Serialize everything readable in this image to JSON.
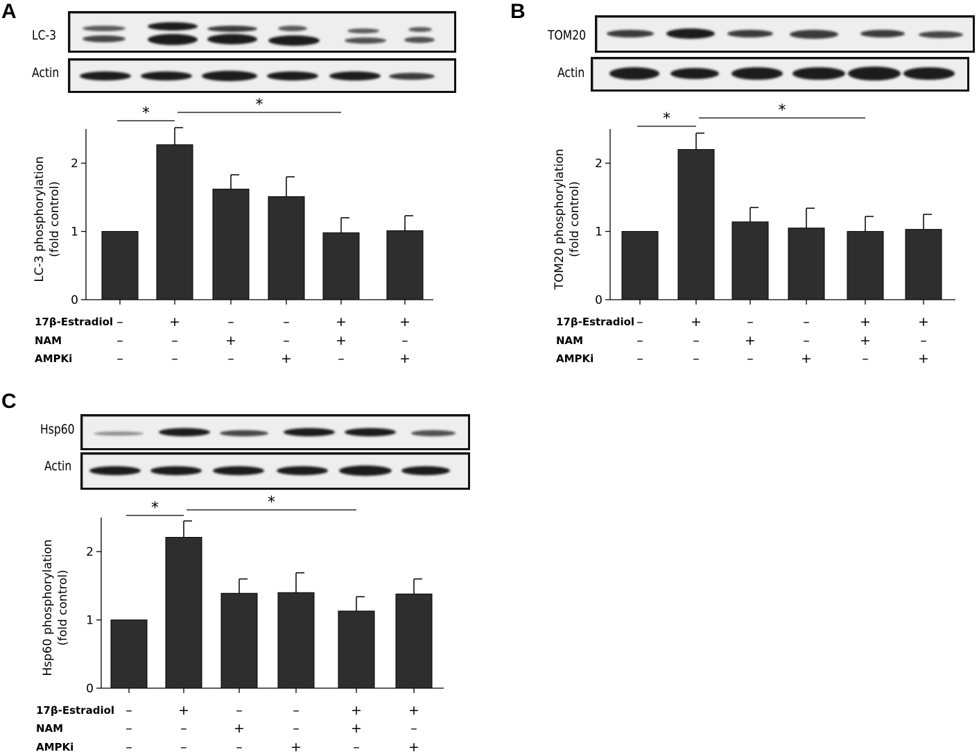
{
  "panels": [
    {
      "letter": "A",
      "blot_labels": [
        "LC-3",
        "Actin"
      ],
      "ylabel_lines": [
        "LC-3 phosphorylation",
        "(fold control)"
      ]
    },
    {
      "letter": "B",
      "blot_labels": [
        "TOM20",
        "Actin"
      ],
      "ylabel_lines": [
        "TOM20 phosphorylation",
        "(fold control)"
      ]
    },
    {
      "letter": "C",
      "blot_labels": [
        "Hsp60",
        "Actin"
      ],
      "ylabel_lines": [
        "Hsp60 phosphorylation",
        "(fold control)"
      ]
    }
  ],
  "chart_data": [
    {
      "type": "bar",
      "title": "",
      "xlabel": "",
      "ylabel": "LC-3 phosphorylation (fold control)",
      "ylim": [
        0,
        2.5
      ],
      "yticks": [
        0,
        1,
        2
      ],
      "values": [
        1.0,
        2.27,
        1.62,
        1.51,
        0.98,
        1.01
      ],
      "errors": [
        0,
        0.25,
        0.21,
        0.29,
        0.22,
        0.22
      ],
      "treatments": [
        {
          "name": "17β-Estradiol",
          "signs": [
            "–",
            "+",
            "–",
            "–",
            "+",
            "+"
          ]
        },
        {
          "name": "NAM",
          "signs": [
            "–",
            "–",
            "+",
            "–",
            "+",
            "–"
          ]
        },
        {
          "name": "AMPKi",
          "signs": [
            "–",
            "–",
            "–",
            "+",
            "–",
            "+"
          ]
        }
      ],
      "significance": [
        {
          "from": 0,
          "to": 1,
          "label": "*"
        },
        {
          "from": 1,
          "to": 4,
          "label": "*"
        }
      ]
    },
    {
      "type": "bar",
      "title": "",
      "xlabel": "",
      "ylabel": "TOM20 phosphorylation (fold control)",
      "ylim": [
        0,
        2.5
      ],
      "yticks": [
        0,
        1,
        2
      ],
      "values": [
        1.0,
        2.2,
        1.14,
        1.05,
        1.0,
        1.03
      ],
      "errors": [
        0,
        0.24,
        0.21,
        0.29,
        0.22,
        0.22
      ],
      "treatments": [
        {
          "name": "17β-Estradiol",
          "signs": [
            "–",
            "+",
            "–",
            "–",
            "+",
            "+"
          ]
        },
        {
          "name": "NAM",
          "signs": [
            "–",
            "–",
            "+",
            "–",
            "+",
            "–"
          ]
        },
        {
          "name": "AMPKi",
          "signs": [
            "–",
            "–",
            "–",
            "+",
            "–",
            "+"
          ]
        }
      ],
      "significance": [
        {
          "from": 0,
          "to": 1,
          "label": "*"
        },
        {
          "from": 1,
          "to": 4,
          "label": "*"
        }
      ]
    },
    {
      "type": "bar",
      "title": "",
      "xlabel": "",
      "ylabel": "Hsp60 phosphorylation (fold control)",
      "ylim": [
        0,
        2.5
      ],
      "yticks": [
        0,
        1,
        2
      ],
      "values": [
        1.0,
        2.21,
        1.39,
        1.4,
        1.13,
        1.38
      ],
      "errors": [
        0,
        0.24,
        0.21,
        0.29,
        0.21,
        0.22
      ],
      "treatments": [
        {
          "name": "17β-Estradiol",
          "signs": [
            "–",
            "+",
            "–",
            "–",
            "+",
            "+"
          ]
        },
        {
          "name": "NAM",
          "signs": [
            "–",
            "–",
            "+",
            "–",
            "+",
            "–"
          ]
        },
        {
          "name": "AMPKi",
          "signs": [
            "–",
            "–",
            "–",
            "+",
            "–",
            "+"
          ]
        }
      ],
      "significance": [
        {
          "from": 0,
          "to": 1,
          "label": "*"
        },
        {
          "from": 1,
          "to": 4,
          "label": "*"
        }
      ]
    }
  ]
}
